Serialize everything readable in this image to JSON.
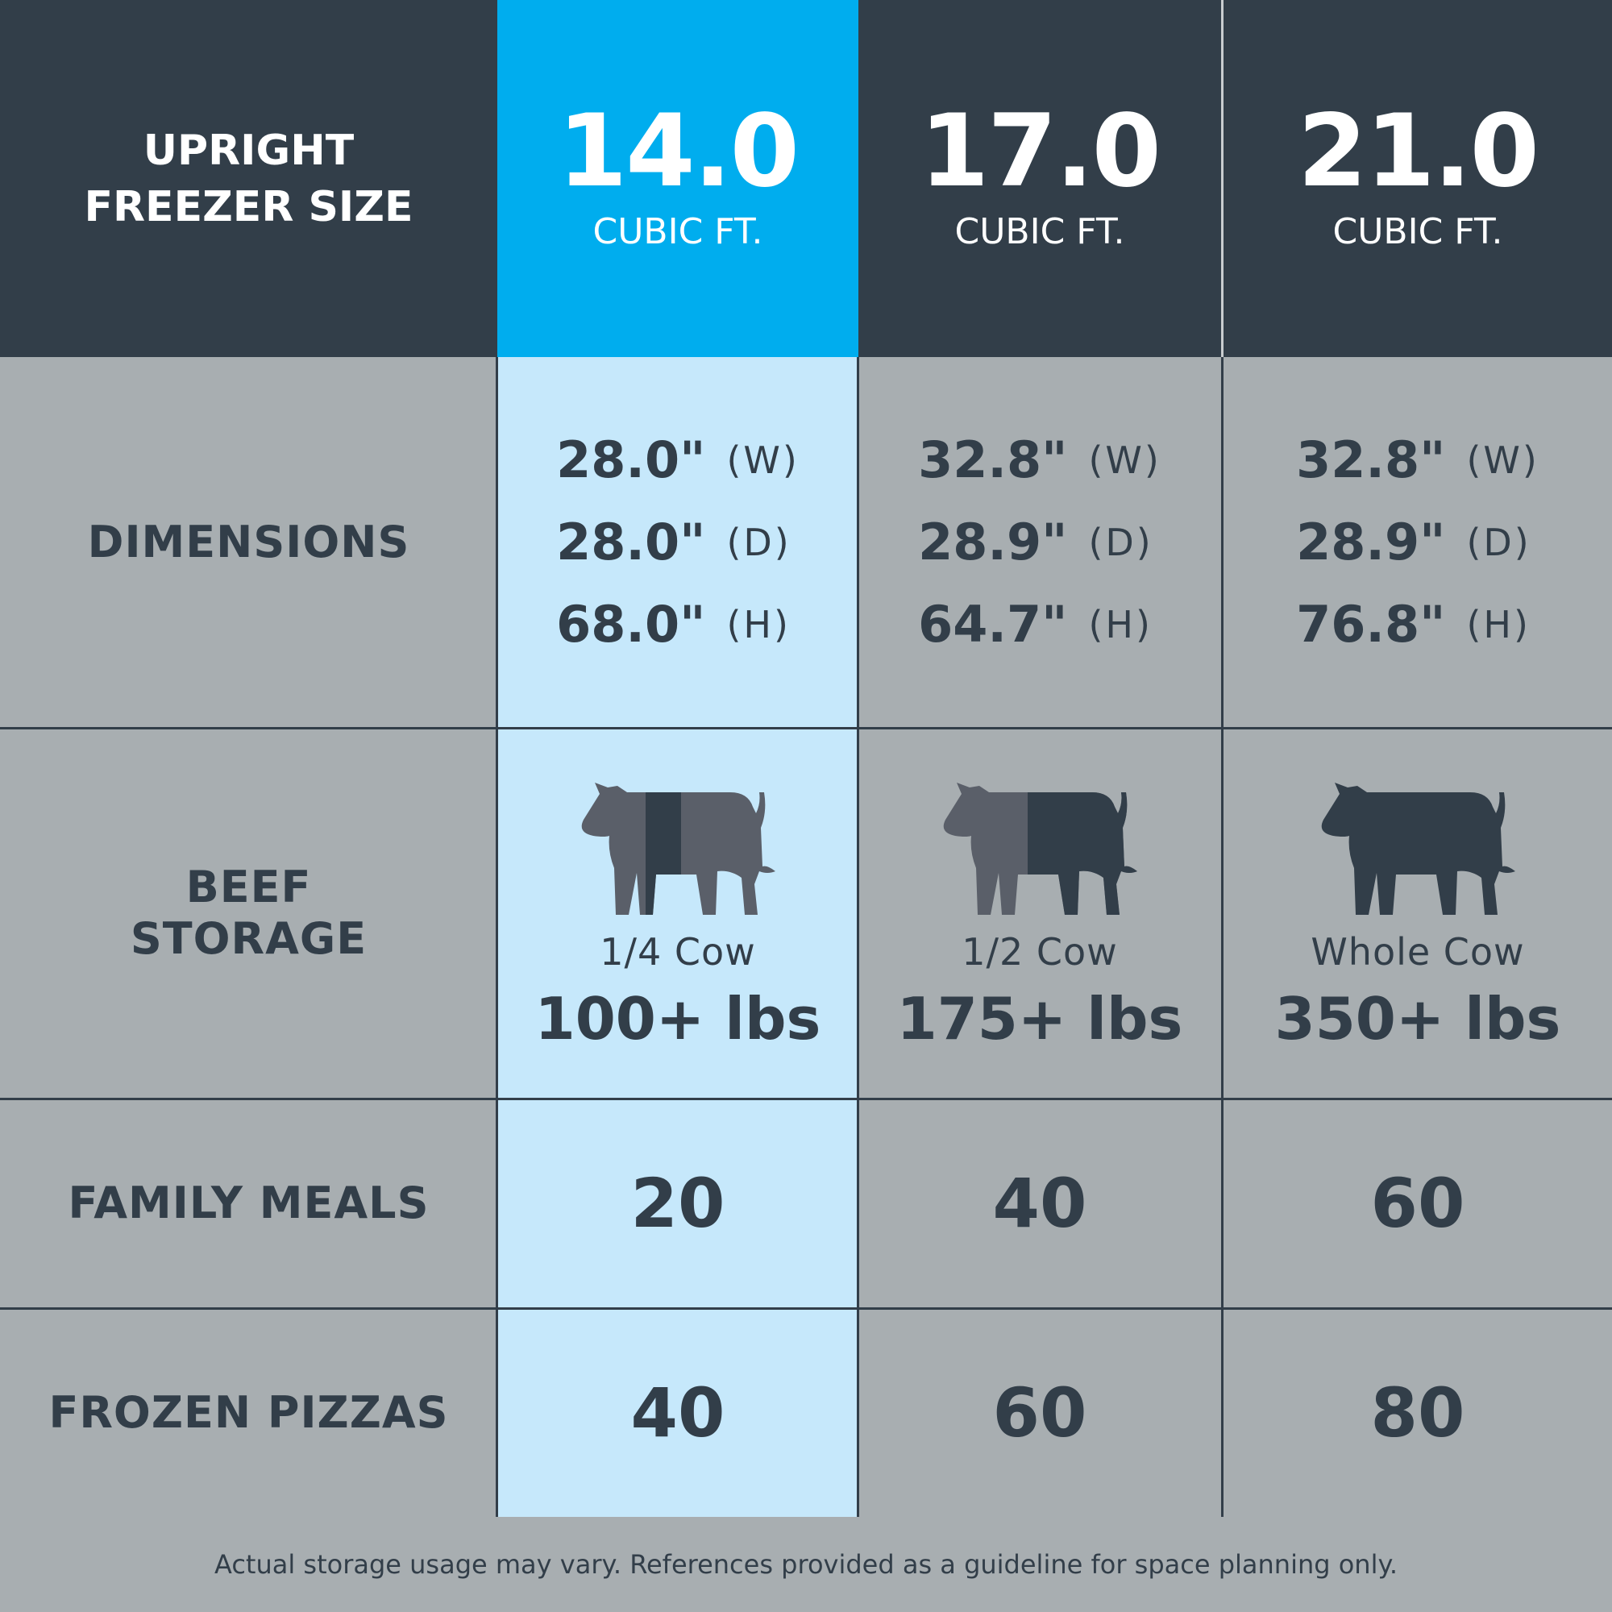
{
  "header": {
    "row_label_line1": "UPRIGHT",
    "row_label_line2": "FREEZER SIZE",
    "sizes": [
      {
        "value": "14.0",
        "unit": "CUBIC FT."
      },
      {
        "value": "17.0",
        "unit": "CUBIC FT."
      },
      {
        "value": "21.0",
        "unit": "CUBIC FT."
      }
    ]
  },
  "rows": {
    "dimensions": {
      "label": "DIMENSIONS",
      "columns": [
        {
          "w": "28.0\"",
          "d": "28.0\"",
          "h": "68.0\""
        },
        {
          "w": "32.8\"",
          "d": "28.9\"",
          "h": "64.7\""
        },
        {
          "w": "32.8\"",
          "d": "28.9\"",
          "h": "76.8\""
        }
      ],
      "axis_w": "(W)",
      "axis_d": "(D)",
      "axis_h": "(H)"
    },
    "beef": {
      "label_line1": "BEEF",
      "label_line2": "STORAGE",
      "columns": [
        {
          "portion": "1/4 Cow",
          "weight": "100+ lbs",
          "fill_fraction": 0.25,
          "icon": "cow-icon"
        },
        {
          "portion": "1/2 Cow",
          "weight": "175+ lbs",
          "fill_fraction": 0.5,
          "icon": "cow-icon"
        },
        {
          "portion": "Whole Cow",
          "weight": "350+ lbs",
          "fill_fraction": 1.0,
          "icon": "cow-icon"
        }
      ]
    },
    "family_meals": {
      "label": "FAMILY MEALS",
      "values": [
        "20",
        "40",
        "60"
      ]
    },
    "frozen_pizzas": {
      "label": "FROZEN PIZZAS",
      "values": [
        "40",
        "60",
        "80"
      ]
    }
  },
  "footer": {
    "note": "Actual storage usage may vary. References provided as a guideline for space planning only."
  },
  "colors": {
    "dark": "#323e49",
    "accent_blue": "#00adee",
    "light_blue": "#c6e8fb",
    "grey": "#a8aeb1",
    "cow_light": "#5a5f69",
    "cow_dark": "#323e49"
  }
}
